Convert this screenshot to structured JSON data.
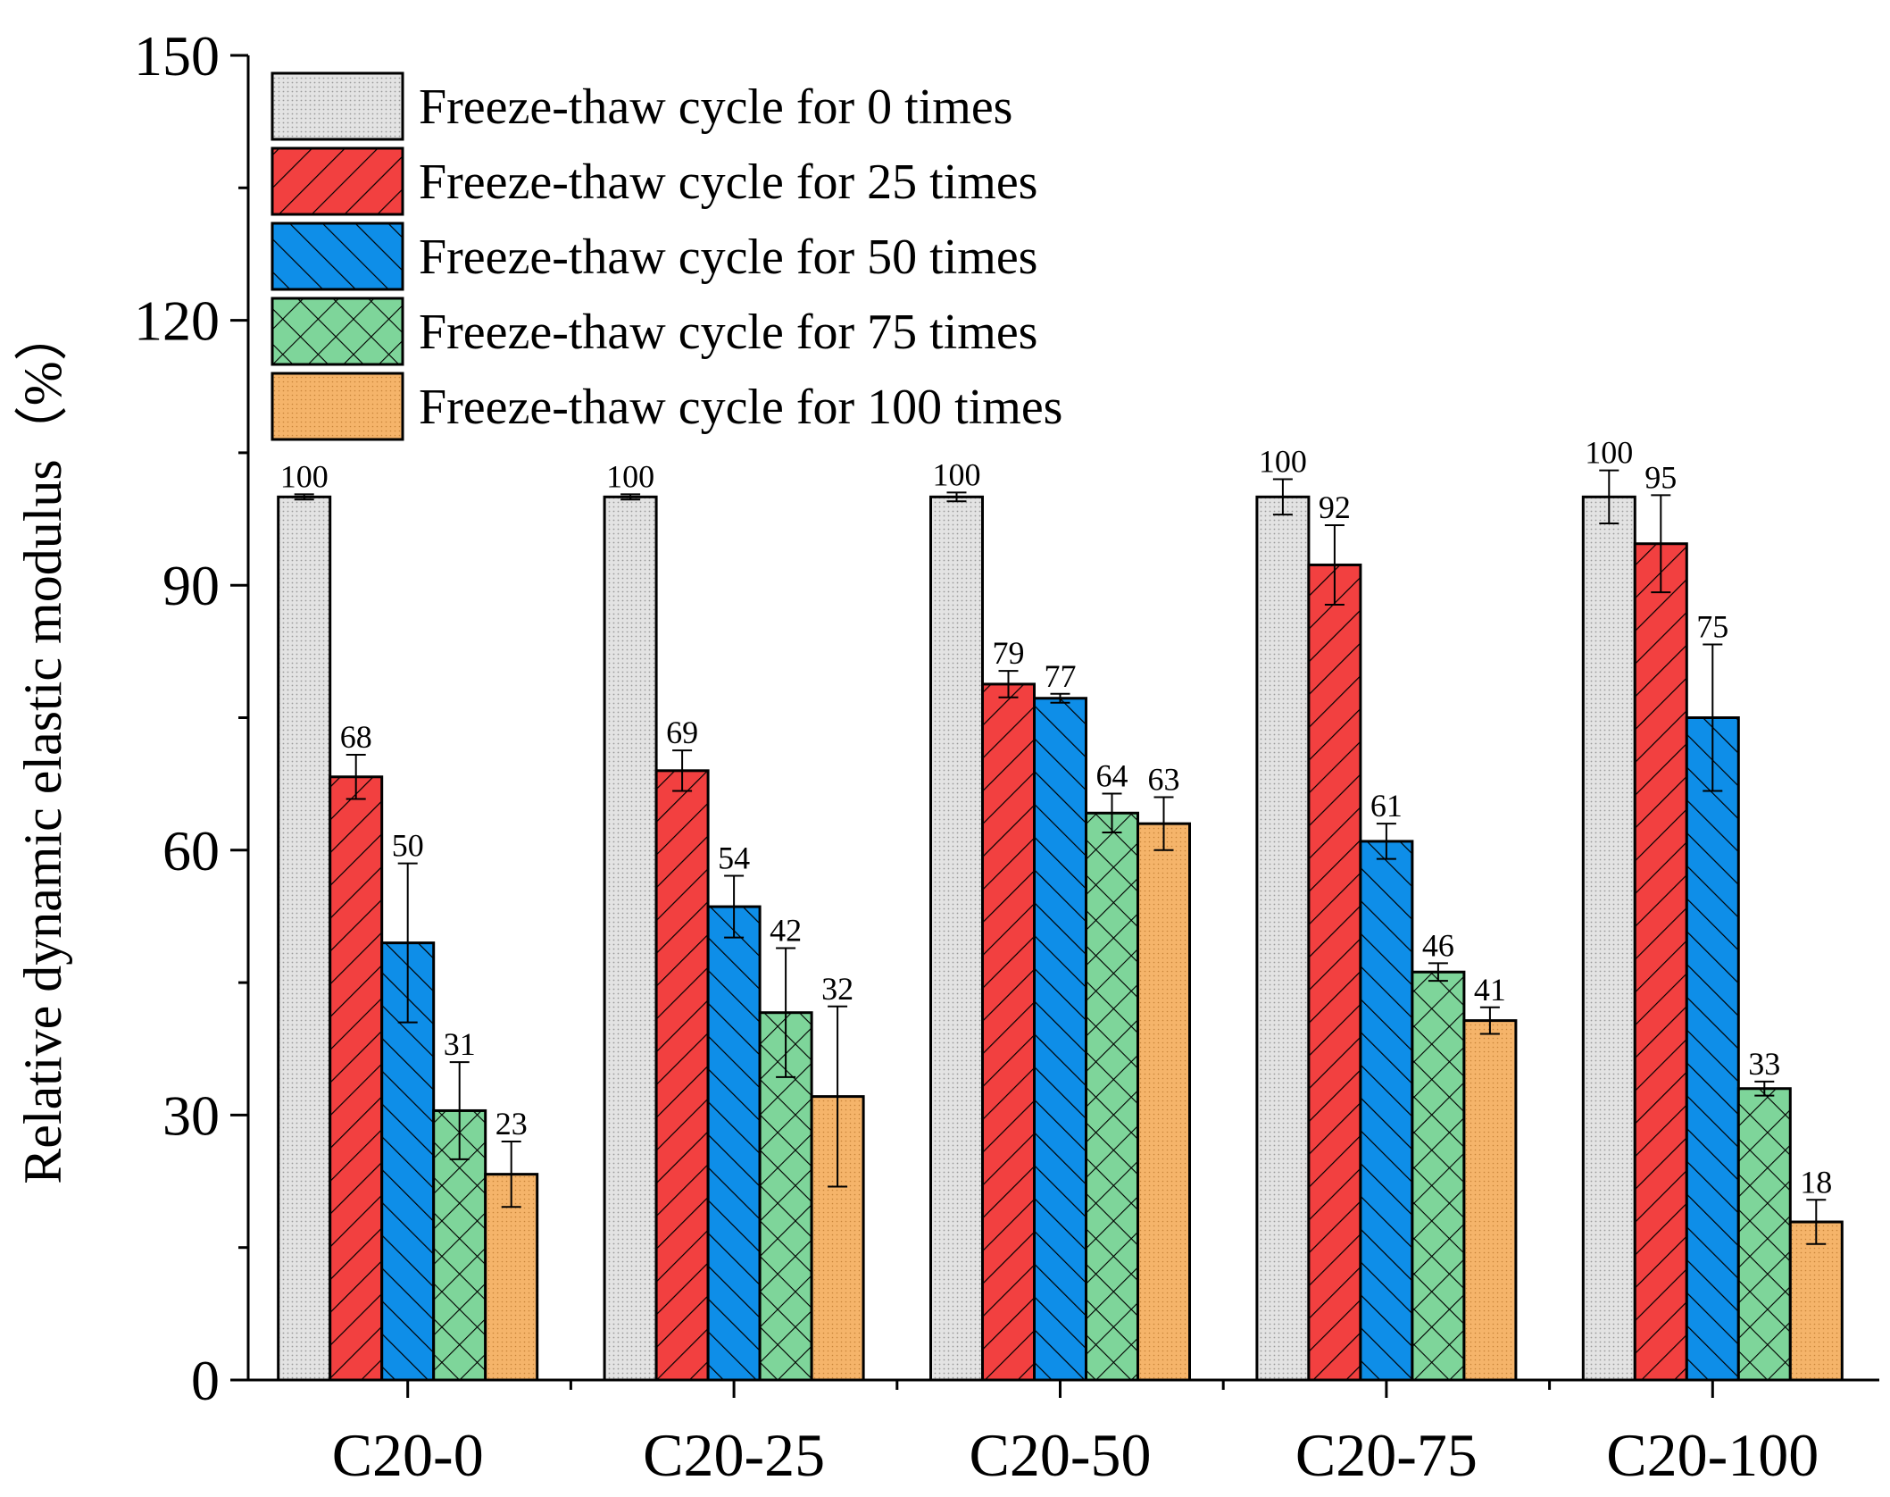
{
  "chart_data": {
    "type": "bar",
    "title": "",
    "xlabel": "",
    "ylabel": "Relative dynamic elastic modulus（%）",
    "ylim": [
      0,
      150
    ],
    "yticks": [
      0,
      30,
      60,
      90,
      120,
      150
    ],
    "categories": [
      "C20-0",
      "C20-25",
      "C20-50",
      "C20-75",
      "C20-100"
    ],
    "legend_position": "top-left",
    "series": [
      {
        "name": "Freeze-thaw cycle for 0 times",
        "values": [
          100,
          100,
          100,
          100,
          100
        ],
        "errors": [
          0.3,
          0.3,
          0.5,
          2,
          3
        ],
        "labels": [
          "100",
          "100",
          "100",
          "100",
          "100"
        ],
        "color": "#e0e0e0",
        "pattern": "dots"
      },
      {
        "name": "Freeze-thaw cycle for 25 times",
        "values": [
          68.3,
          69,
          78.8,
          92.3,
          94.7
        ],
        "errors": [
          2.5,
          2.3,
          1.5,
          4.5,
          5.5
        ],
        "labels": [
          "68",
          "69",
          "79",
          "92",
          "95"
        ],
        "color": "#f24040",
        "pattern": "fwd-hatch"
      },
      {
        "name": "Freeze-thaw cycle for 50 times",
        "values": [
          49.5,
          53.6,
          77.2,
          61,
          75
        ],
        "errors": [
          9,
          3.5,
          0.5,
          2,
          8.3
        ],
        "labels": [
          "50",
          "54",
          "77",
          "61",
          "75"
        ],
        "color": "#0e8ee8",
        "pattern": "back-hatch"
      },
      {
        "name": "Freeze-thaw cycle for 75 times",
        "values": [
          30.5,
          41.6,
          64.2,
          46.2,
          33
        ],
        "errors": [
          5.5,
          7.3,
          2.2,
          1,
          0.8
        ],
        "labels": [
          "31",
          "42",
          "64",
          "46",
          "33"
        ],
        "color": "#7ed59a",
        "pattern": "crosshatch"
      },
      {
        "name": "Freeze-thaw cycle for 100 times",
        "values": [
          23.3,
          32.1,
          63,
          40.7,
          17.9
        ],
        "errors": [
          3.7,
          10.2,
          3,
          1.5,
          2.5
        ],
        "labels": [
          "23",
          "32",
          "63",
          "41",
          "18"
        ],
        "color": "#f5b46a",
        "pattern": "fine-dots"
      }
    ]
  }
}
